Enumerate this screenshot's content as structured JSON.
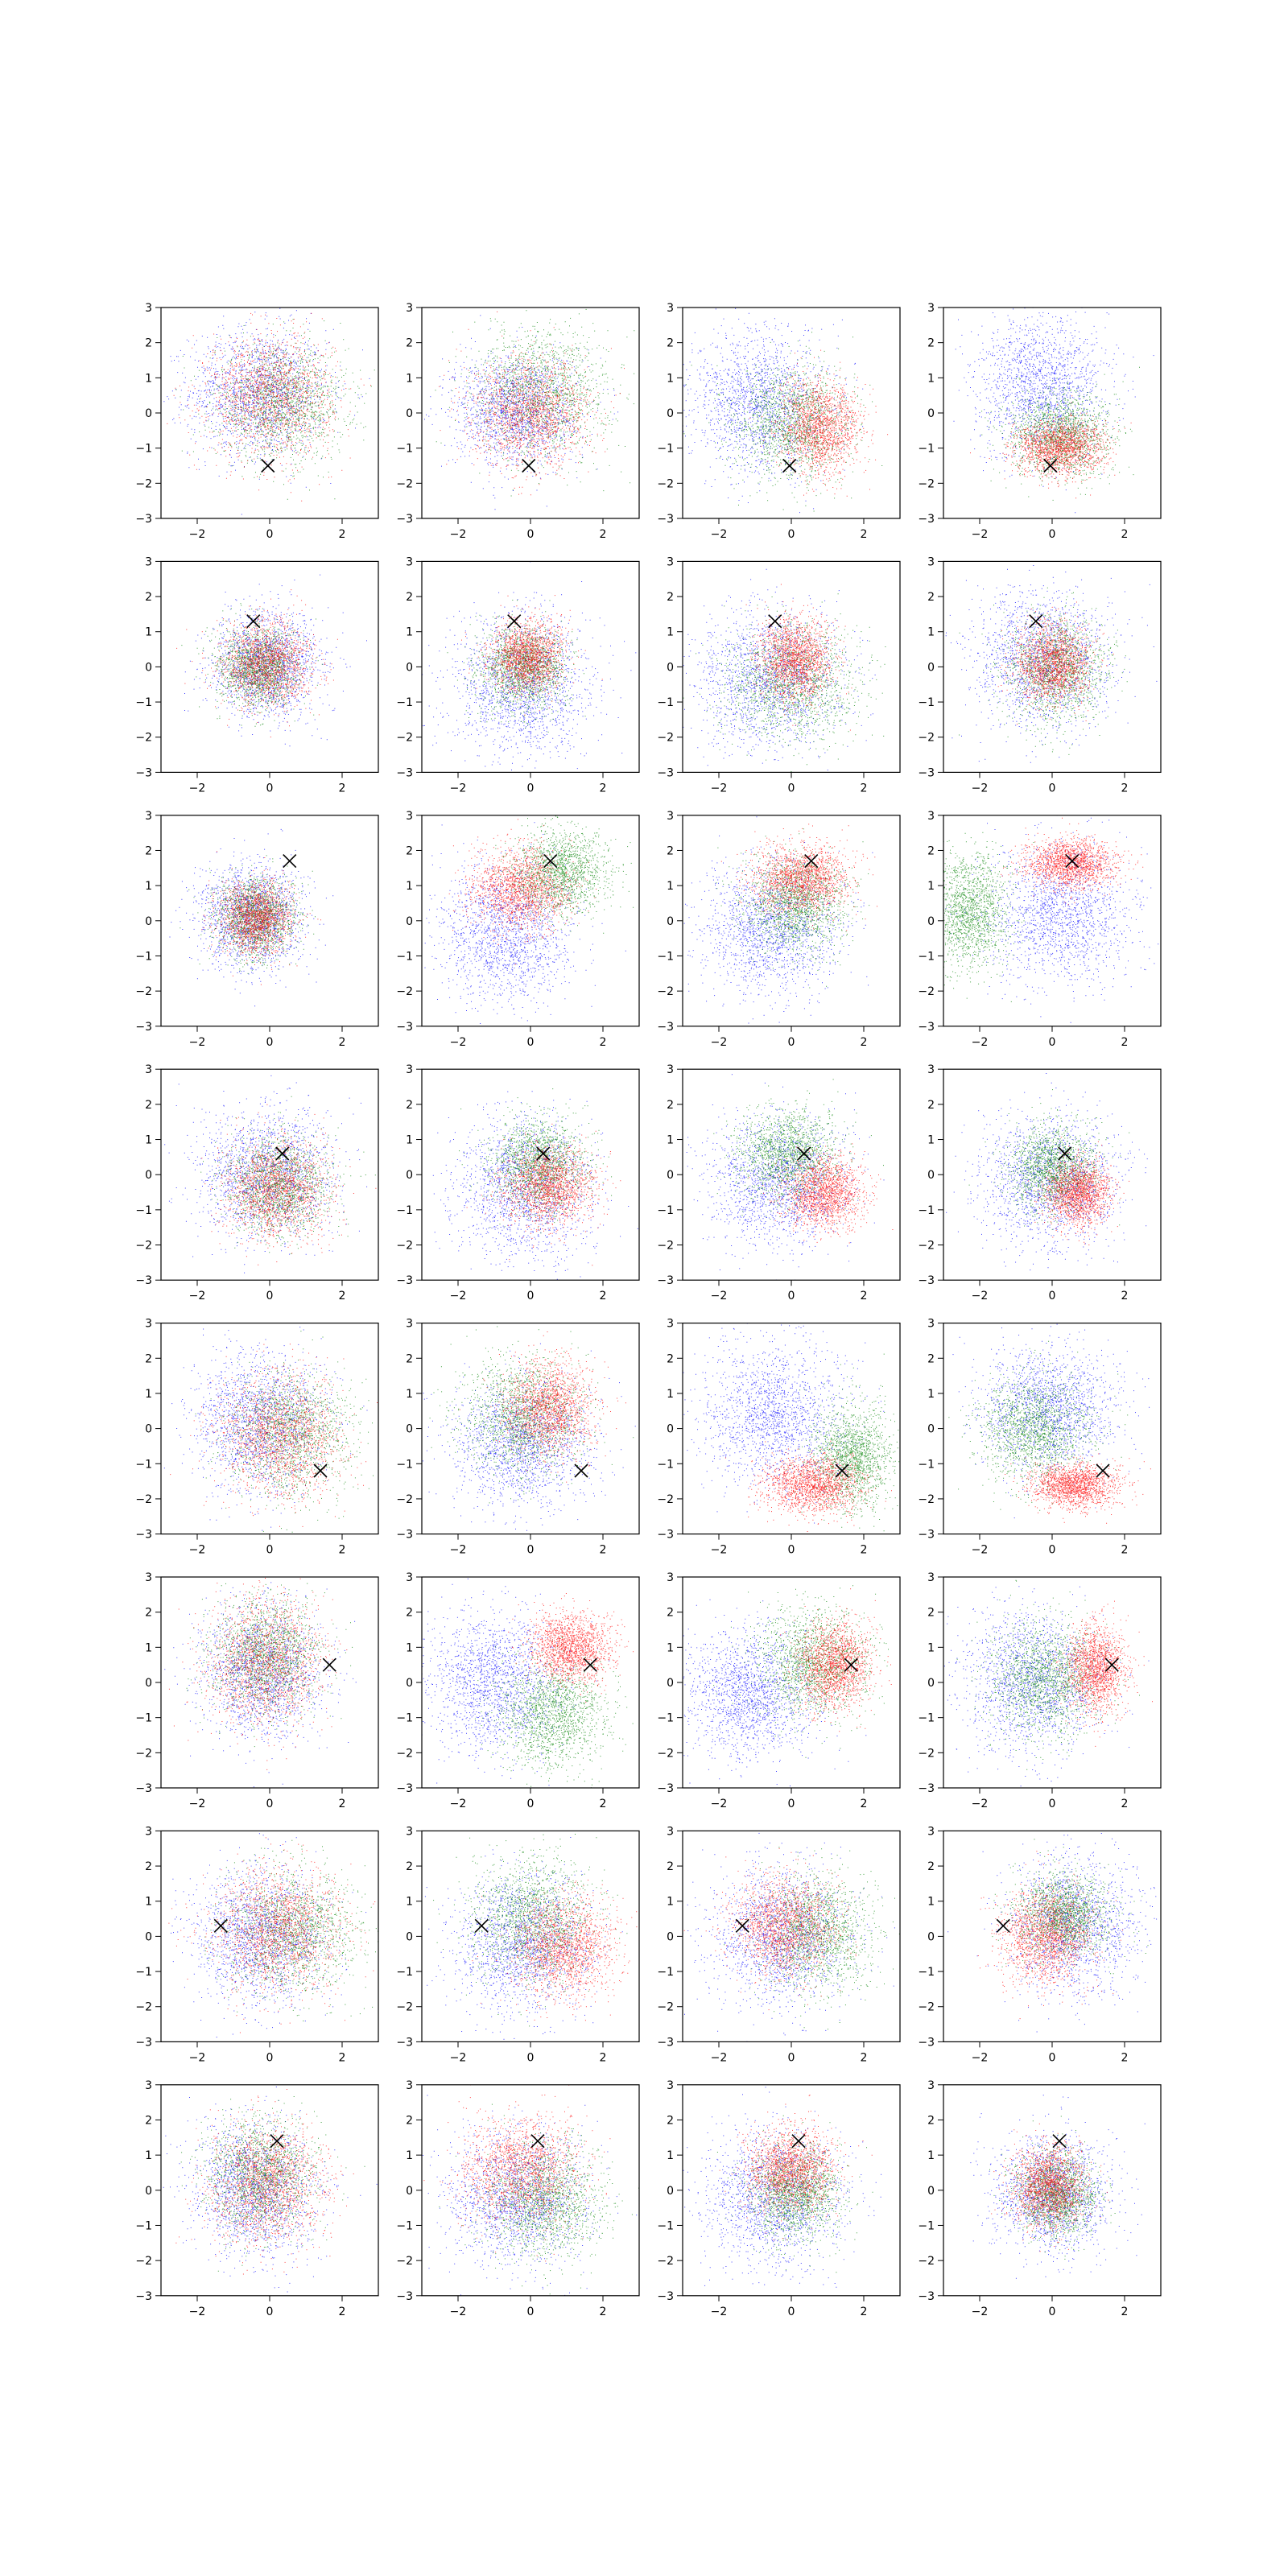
{
  "figure": {
    "rows": 8,
    "cols": 4
  },
  "chart_data": {
    "type": "scatter",
    "description_grid": "8 rows x 4 columns of scatter subplots",
    "xlim": [
      -3,
      3
    ],
    "ylim": [
      -3,
      3
    ],
    "x_ticks": [
      -2,
      0,
      2
    ],
    "y_ticks": [
      -3,
      -2,
      -1,
      0,
      1,
      2,
      3
    ],
    "grid": false,
    "legend": "none",
    "colors": {
      "c0": "#0000ff",
      "c1": "#008000",
      "c2": "#ff0000",
      "marker": "#000000"
    },
    "marker_symbol": "x",
    "points_per_cluster": 1600,
    "rows": [
      {
        "marker": [
          -0.05,
          -1.5
        ],
        "panels": [
          [
            {
              "c": "c0",
              "mx": -0.3,
              "my": 0.6,
              "sx": 0.95,
              "sy": 0.9
            },
            {
              "c": "c1",
              "mx": 0.3,
              "my": 0.3,
              "sx": 0.9,
              "sy": 0.8
            },
            {
              "c": "c2",
              "mx": 0.0,
              "my": 0.5,
              "sx": 0.85,
              "sy": 0.85
            }
          ],
          [
            {
              "c": "c0",
              "mx": -0.4,
              "my": 0.1,
              "sx": 0.85,
              "sy": 0.8
            },
            {
              "c": "c1",
              "mx": 0.3,
              "my": 0.6,
              "sx": 0.9,
              "sy": 0.9
            },
            {
              "c": "c2",
              "mx": 0.0,
              "my": 0.0,
              "sx": 0.8,
              "sy": 0.75
            }
          ],
          [
            {
              "c": "c0",
              "mx": -0.9,
              "my": 0.3,
              "sx": 0.95,
              "sy": 1.0
            },
            {
              "c": "c1",
              "mx": 0.0,
              "my": -0.3,
              "sx": 0.8,
              "sy": 0.8
            },
            {
              "c": "c2",
              "mx": 0.8,
              "my": -0.4,
              "sx": 0.55,
              "sy": 0.65
            }
          ],
          [
            {
              "c": "c0",
              "mx": -0.3,
              "my": 0.8,
              "sx": 0.9,
              "sy": 1.0
            },
            {
              "c": "c1",
              "mx": 0.2,
              "my": -0.6,
              "sx": 0.7,
              "sy": 0.6
            },
            {
              "c": "c2",
              "mx": 0.2,
              "my": -1.0,
              "sx": 0.6,
              "sy": 0.4
            }
          ]
        ]
      },
      {
        "marker": [
          -0.45,
          1.3
        ],
        "panels": [
          [
            {
              "c": "c0",
              "mx": -0.1,
              "my": 0.1,
              "sx": 0.75,
              "sy": 0.75
            },
            {
              "c": "c1",
              "mx": -0.3,
              "my": 0.0,
              "sx": 0.55,
              "sy": 0.55
            },
            {
              "c": "c2",
              "mx": -0.1,
              "my": 0.1,
              "sx": 0.6,
              "sy": 0.6
            }
          ],
          [
            {
              "c": "c0",
              "mx": -0.2,
              "my": -0.6,
              "sx": 0.95,
              "sy": 1.0
            },
            {
              "c": "c1",
              "mx": -0.2,
              "my": 0.0,
              "sx": 0.6,
              "sy": 0.6
            },
            {
              "c": "c2",
              "mx": -0.1,
              "my": 0.3,
              "sx": 0.5,
              "sy": 0.5
            }
          ],
          [
            {
              "c": "c0",
              "mx": -0.6,
              "my": -0.3,
              "sx": 1.0,
              "sy": 0.95
            },
            {
              "c": "c1",
              "mx": 0.0,
              "my": -0.4,
              "sx": 0.9,
              "sy": 0.8
            },
            {
              "c": "c2",
              "mx": 0.1,
              "my": 0.2,
              "sx": 0.5,
              "sy": 0.55
            }
          ],
          [
            {
              "c": "c0",
              "mx": -0.3,
              "my": 0.2,
              "sx": 0.95,
              "sy": 1.0
            },
            {
              "c": "c1",
              "mx": 0.1,
              "my": -0.1,
              "sx": 0.7,
              "sy": 0.75
            },
            {
              "c": "c2",
              "mx": 0.0,
              "my": 0.1,
              "sx": 0.5,
              "sy": 0.55
            }
          ]
        ]
      },
      {
        "marker": [
          0.55,
          1.7
        ],
        "panels": [
          [
            {
              "c": "c0",
              "mx": -0.5,
              "my": 0.1,
              "sx": 0.7,
              "sy": 0.75
            },
            {
              "c": "c1",
              "mx": -0.4,
              "my": 0.1,
              "sx": 0.55,
              "sy": 0.55
            },
            {
              "c": "c2",
              "mx": -0.4,
              "my": 0.1,
              "sx": 0.5,
              "sy": 0.5
            }
          ],
          [
            {
              "c": "c0",
              "mx": -0.7,
              "my": -0.4,
              "sx": 0.9,
              "sy": 0.95
            },
            {
              "c": "c1",
              "mx": 0.8,
              "my": 1.4,
              "sx": 0.65,
              "sy": 0.6
            },
            {
              "c": "c2",
              "mx": -0.3,
              "my": 0.9,
              "sx": 0.65,
              "sy": 0.6
            }
          ],
          [
            {
              "c": "c0",
              "mx": -0.6,
              "my": -0.2,
              "sx": 0.95,
              "sy": 0.9
            },
            {
              "c": "c1",
              "mx": 0.1,
              "my": 0.5,
              "sx": 0.7,
              "sy": 0.7
            },
            {
              "c": "c2",
              "mx": 0.3,
              "my": 1.2,
              "sx": 0.65,
              "sy": 0.5
            }
          ],
          [
            {
              "c": "c0",
              "mx": 0.2,
              "my": 0.2,
              "sx": 1.0,
              "sy": 1.0
            },
            {
              "c": "c1",
              "mx": -2.3,
              "my": 0.3,
              "sx": 0.55,
              "sy": 0.8
            },
            {
              "c": "c2",
              "mx": 0.5,
              "my": 1.65,
              "sx": 0.6,
              "sy": 0.35
            }
          ]
        ]
      },
      {
        "marker": [
          0.35,
          0.6
        ],
        "panels": [
          [
            {
              "c": "c0",
              "mx": -0.1,
              "my": 0.0,
              "sx": 0.95,
              "sy": 0.9
            },
            {
              "c": "c1",
              "mx": 0.2,
              "my": -0.3,
              "sx": 0.7,
              "sy": 0.7
            },
            {
              "c": "c2",
              "mx": 0.2,
              "my": -0.4,
              "sx": 0.7,
              "sy": 0.7
            }
          ],
          [
            {
              "c": "c0",
              "mx": -0.2,
              "my": -0.4,
              "sx": 0.95,
              "sy": 1.0
            },
            {
              "c": "c1",
              "mx": 0.2,
              "my": 0.3,
              "sx": 0.65,
              "sy": 0.65
            },
            {
              "c": "c2",
              "mx": 0.5,
              "my": -0.3,
              "sx": 0.6,
              "sy": 0.55
            }
          ],
          [
            {
              "c": "c0",
              "mx": -0.4,
              "my": -0.2,
              "sx": 0.95,
              "sy": 0.9
            },
            {
              "c": "c1",
              "mx": -0.1,
              "my": 0.6,
              "sx": 0.7,
              "sy": 0.65
            },
            {
              "c": "c2",
              "mx": 0.9,
              "my": -0.5,
              "sx": 0.55,
              "sy": 0.5
            }
          ],
          [
            {
              "c": "c0",
              "mx": -0.1,
              "my": -0.2,
              "sx": 0.95,
              "sy": 0.95
            },
            {
              "c": "c1",
              "mx": 0.0,
              "my": 0.2,
              "sx": 0.6,
              "sy": 0.6
            },
            {
              "c": "c2",
              "mx": 0.7,
              "my": -0.5,
              "sx": 0.45,
              "sy": 0.45
            }
          ]
        ]
      },
      {
        "marker": [
          1.4,
          -1.2
        ],
        "panels": [
          [
            {
              "c": "c0",
              "mx": -0.3,
              "my": 0.2,
              "sx": 0.9,
              "sy": 0.95
            },
            {
              "c": "c1",
              "mx": 0.6,
              "my": -0.1,
              "sx": 0.85,
              "sy": 0.85
            },
            {
              "c": "c2",
              "mx": 0.3,
              "my": -0.2,
              "sx": 0.85,
              "sy": 0.85
            }
          ],
          [
            {
              "c": "c0",
              "mx": -0.2,
              "my": -0.4,
              "sx": 0.95,
              "sy": 0.9
            },
            {
              "c": "c1",
              "mx": -0.2,
              "my": 0.4,
              "sx": 0.8,
              "sy": 0.8
            },
            {
              "c": "c2",
              "mx": 0.5,
              "my": 0.6,
              "sx": 0.6,
              "sy": 0.65
            }
          ],
          [
            {
              "c": "c0",
              "mx": -0.5,
              "my": 0.4,
              "sx": 1.0,
              "sy": 1.0
            },
            {
              "c": "c1",
              "mx": 1.7,
              "my": -0.8,
              "sx": 0.55,
              "sy": 0.75
            },
            {
              "c": "c2",
              "mx": 0.6,
              "my": -1.6,
              "sx": 0.65,
              "sy": 0.4
            }
          ],
          [
            {
              "c": "c0",
              "mx": -0.1,
              "my": 0.6,
              "sx": 0.95,
              "sy": 0.9
            },
            {
              "c": "c1",
              "mx": -0.5,
              "my": 0.0,
              "sx": 0.75,
              "sy": 0.75
            },
            {
              "c": "c2",
              "mx": 0.6,
              "my": -1.6,
              "sx": 0.6,
              "sy": 0.3
            }
          ]
        ]
      },
      {
        "marker": [
          1.65,
          0.5
        ],
        "panels": [
          [
            {
              "c": "c0",
              "mx": -0.2,
              "my": 0.3,
              "sx": 0.85,
              "sy": 0.95
            },
            {
              "c": "c1",
              "mx": -0.1,
              "my": 0.8,
              "sx": 0.75,
              "sy": 0.8
            },
            {
              "c": "c2",
              "mx": -0.2,
              "my": 0.6,
              "sx": 0.8,
              "sy": 0.9
            }
          ],
          [
            {
              "c": "c0",
              "mx": -1.0,
              "my": 0.0,
              "sx": 0.9,
              "sy": 0.95
            },
            {
              "c": "c1",
              "mx": 0.6,
              "my": -0.9,
              "sx": 0.75,
              "sy": 0.75
            },
            {
              "c": "c2",
              "mx": 1.1,
              "my": 1.0,
              "sx": 0.55,
              "sy": 0.5
            }
          ],
          [
            {
              "c": "c0",
              "mx": -1.2,
              "my": -0.3,
              "sx": 0.9,
              "sy": 0.9
            },
            {
              "c": "c1",
              "mx": 0.6,
              "my": 0.6,
              "sx": 0.8,
              "sy": 0.75
            },
            {
              "c": "c2",
              "mx": 1.2,
              "my": 0.5,
              "sx": 0.5,
              "sy": 0.6
            }
          ],
          [
            {
              "c": "c0",
              "mx": -0.6,
              "my": 0.0,
              "sx": 0.95,
              "sy": 0.95
            },
            {
              "c": "c1",
              "mx": -0.2,
              "my": 0.1,
              "sx": 0.75,
              "sy": 0.8
            },
            {
              "c": "c2",
              "mx": 1.2,
              "my": 0.4,
              "sx": 0.4,
              "sy": 0.6
            }
          ]
        ]
      },
      {
        "marker": [
          -1.35,
          0.3
        ],
        "panels": [
          [
            {
              "c": "c0",
              "mx": -0.3,
              "my": 0.0,
              "sx": 0.95,
              "sy": 0.95
            },
            {
              "c": "c1",
              "mx": 0.6,
              "my": 0.1,
              "sx": 0.9,
              "sy": 0.85
            },
            {
              "c": "c2",
              "mx": 0.2,
              "my": 0.2,
              "sx": 0.9,
              "sy": 0.85
            }
          ],
          [
            {
              "c": "c0",
              "mx": -0.2,
              "my": -0.2,
              "sx": 0.95,
              "sy": 0.95
            },
            {
              "c": "c1",
              "mx": 0.0,
              "my": 0.5,
              "sx": 0.85,
              "sy": 0.85
            },
            {
              "c": "c2",
              "mx": 0.9,
              "my": -0.3,
              "sx": 0.7,
              "sy": 0.7
            }
          ],
          [
            {
              "c": "c0",
              "mx": -0.3,
              "my": 0.0,
              "sx": 0.95,
              "sy": 0.95
            },
            {
              "c": "c1",
              "mx": 0.7,
              "my": 0.1,
              "sx": 0.75,
              "sy": 0.8
            },
            {
              "c": "c2",
              "mx": -0.2,
              "my": 0.3,
              "sx": 0.7,
              "sy": 0.7
            }
          ],
          [
            {
              "c": "c0",
              "mx": 0.6,
              "my": 0.3,
              "sx": 0.9,
              "sy": 0.95
            },
            {
              "c": "c1",
              "mx": 0.3,
              "my": 0.6,
              "sx": 0.65,
              "sy": 0.6
            },
            {
              "c": "c2",
              "mx": -0.2,
              "my": 0.0,
              "sx": 0.6,
              "sy": 0.65
            }
          ]
        ]
      },
      {
        "marker": [
          0.2,
          1.4
        ],
        "panels": [
          [
            {
              "c": "c0",
              "mx": -0.4,
              "my": 0.0,
              "sx": 0.85,
              "sy": 0.95
            },
            {
              "c": "c1",
              "mx": -0.3,
              "my": 0.4,
              "sx": 0.75,
              "sy": 0.8
            },
            {
              "c": "c2",
              "mx": -0.1,
              "my": 0.2,
              "sx": 0.8,
              "sy": 0.85
            }
          ],
          [
            {
              "c": "c0",
              "mx": -0.4,
              "my": -0.2,
              "sx": 0.95,
              "sy": 0.95
            },
            {
              "c": "c1",
              "mx": 0.4,
              "my": -0.3,
              "sx": 0.8,
              "sy": 0.8
            },
            {
              "c": "c2",
              "mx": -0.3,
              "my": 0.6,
              "sx": 0.8,
              "sy": 0.75
            }
          ],
          [
            {
              "c": "c0",
              "mx": -0.5,
              "my": -0.2,
              "sx": 0.95,
              "sy": 0.95
            },
            {
              "c": "c1",
              "mx": 0.1,
              "my": -0.1,
              "sx": 0.6,
              "sy": 0.65
            },
            {
              "c": "c2",
              "mx": 0.0,
              "my": 0.6,
              "sx": 0.6,
              "sy": 0.6
            }
          ],
          [
            {
              "c": "c0",
              "mx": 0.0,
              "my": -0.1,
              "sx": 0.8,
              "sy": 0.8
            },
            {
              "c": "c1",
              "mx": 0.1,
              "my": -0.1,
              "sx": 0.55,
              "sy": 0.6
            },
            {
              "c": "c2",
              "mx": -0.1,
              "my": 0.1,
              "sx": 0.5,
              "sy": 0.55
            }
          ]
        ]
      }
    ]
  }
}
